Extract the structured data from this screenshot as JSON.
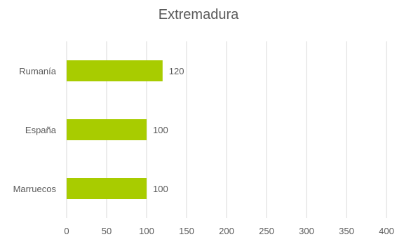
{
  "chart_data": {
    "type": "bar",
    "orientation": "horizontal",
    "title": "Extremadura",
    "xlabel": "",
    "ylabel": "",
    "categories": [
      "Rumanía",
      "España",
      "Marruecos"
    ],
    "values": [
      120,
      100,
      100
    ],
    "data_labels": [
      "120",
      "100",
      "100"
    ],
    "xlim": [
      0,
      400
    ],
    "x_ticks": [
      0,
      50,
      100,
      150,
      200,
      250,
      300,
      350,
      400
    ],
    "grid": "vertical",
    "legend": "none",
    "colors": {
      "bar": "#a8cc00",
      "grid": "#d9d9d9",
      "text": "#595959"
    }
  }
}
